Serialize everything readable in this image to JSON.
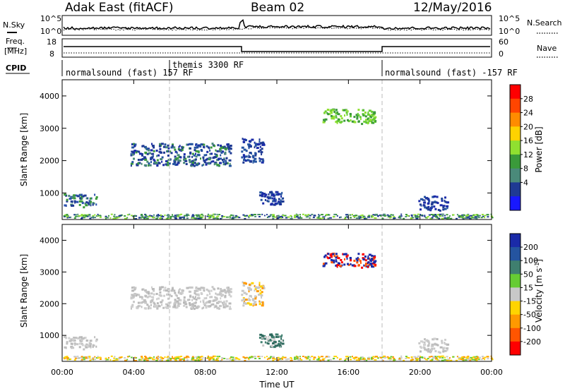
{
  "header": {
    "station": "Adak East (fitACF)",
    "beam": "Beam 02",
    "date": "12/May/2016"
  },
  "top_panels": {
    "nsky_label": "N.Sky",
    "nsky_ticks": [
      "10^5",
      "10^0"
    ],
    "nsearch_label": "N.Search",
    "nsearch_ticks": [
      "10^5",
      "10^0"
    ],
    "freq_label_line1": "Freq.",
    "freq_label_line2": "[MHz]",
    "freq_ticks": [
      "18",
      "8"
    ],
    "nave_label": "Nave",
    "nave_ticks": [
      "60",
      "0"
    ],
    "cpid_label": "CPID"
  },
  "cpid_segments": [
    {
      "label": "normalsound (fast) 157 RF",
      "start": 0,
      "end": 6
    },
    {
      "label": "themis 3300 RF",
      "start": 6,
      "end": 18
    },
    {
      "label": "normalsound (fast) -157 RF",
      "start": 18,
      "end": 24
    }
  ],
  "power_panel": {
    "ylabel": "Slant Range [km]",
    "colorbar_label": "Power [dB]",
    "colorbar_ticks": [
      "28",
      "24",
      "20",
      "16",
      "12",
      "8",
      "4"
    ],
    "colorbar_colors": [
      "#ff0000",
      "#ff4500",
      "#ff8c00",
      "#ffd200",
      "#90e030",
      "#3a9a3a",
      "#4a8a7a",
      "#1f3a93",
      "#1818ff"
    ]
  },
  "velocity_panel": {
    "ylabel": "Slant Range [km]",
    "colorbar_label": "Velocity [m s^-1]",
    "colorbar_ticks": [
      "200",
      "100",
      "50",
      "15",
      "-15",
      "-50",
      "-100",
      "-200"
    ],
    "colorbar_colors": [
      "#1a2aa8",
      "#2454a0",
      "#3f7f6f",
      "#66cc33",
      "#c8c8c8",
      "#ffd400",
      "#ff9900",
      "#ff5500",
      "#ff0000"
    ]
  },
  "x_axis": {
    "label": "Time UT",
    "ticks": [
      "00:00",
      "04:00",
      "08:00",
      "12:00",
      "16:00",
      "20:00",
      "00:00"
    ]
  },
  "chart_data": {
    "type": "heatmap",
    "x_range_hours": [
      0,
      24
    ],
    "y_range_km": [
      180,
      4500
    ],
    "y_ticks_km": [
      1000,
      2000,
      3000,
      4000
    ],
    "mode_change_hours": [
      6,
      18
    ],
    "scatter_regions": [
      {
        "t0": 0.0,
        "t1": 1.9,
        "r0": 520,
        "r1": 920,
        "power": "mixed",
        "velocity": "gray"
      },
      {
        "t0": 3.8,
        "t1": 9.4,
        "r0": 1800,
        "r1": 2500,
        "power": "blue-green",
        "velocity": "gray"
      },
      {
        "t0": 10.0,
        "t1": 11.2,
        "r0": 1900,
        "r1": 2650,
        "power": "blue",
        "velocity": "gray-orange"
      },
      {
        "t0": 11.0,
        "t1": 12.3,
        "r0": 600,
        "r1": 1000,
        "power": "blue",
        "velocity": "teal"
      },
      {
        "t0": 14.5,
        "t1": 17.5,
        "r0": 3100,
        "r1": 3550,
        "power": "green",
        "velocity": "red-blue"
      },
      {
        "t0": 19.9,
        "t1": 21.5,
        "r0": 420,
        "r1": 860,
        "power": "blue",
        "velocity": "gray"
      },
      {
        "t0": 0.0,
        "t1": 24.0,
        "r0": 180,
        "r1": 320,
        "power": "near-range",
        "velocity": "ground"
      }
    ]
  }
}
